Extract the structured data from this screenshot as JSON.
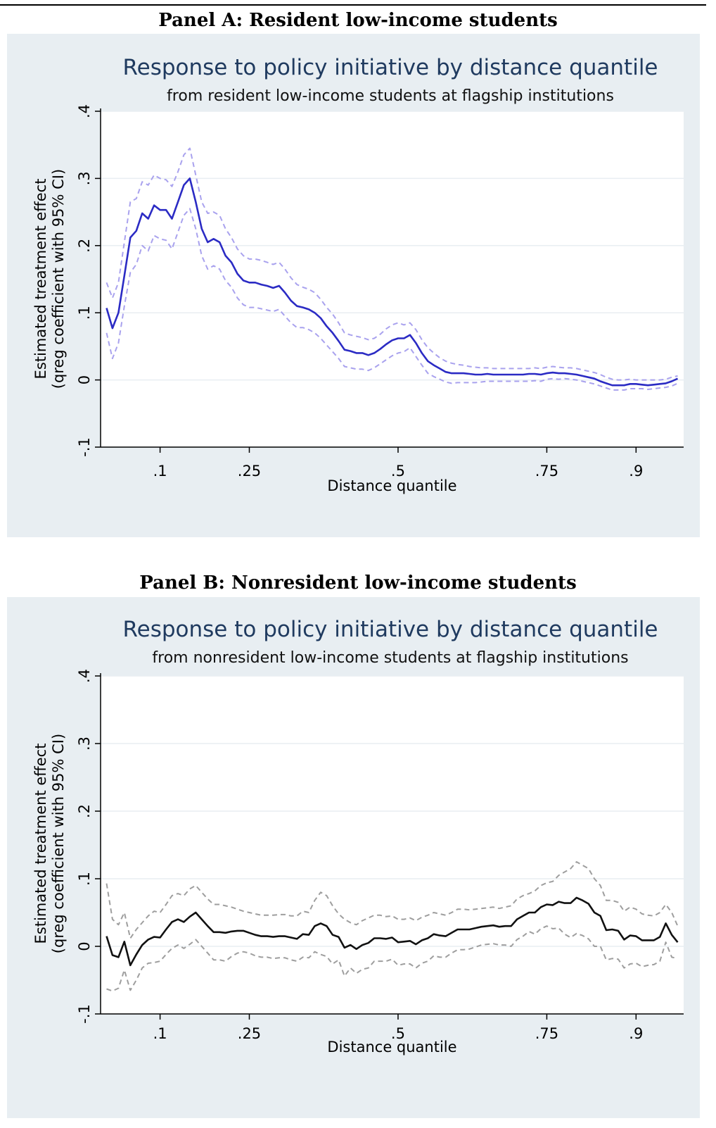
{
  "panels": [
    {
      "label": "Panel A: Resident low-income students"
    },
    {
      "label": "Panel B: Nonresident low-income students"
    }
  ],
  "chart_data": [
    {
      "type": "line",
      "title": "Response to policy initiative by distance quantile",
      "subtitle": "from resident low-income students at flagship institutions",
      "xlabel": "Distance quantile",
      "ylabel": "Estimated treatment effect",
      "ylabel2": "(qreg coefficient with 95% CI)",
      "xlim": [
        0.0,
        0.98
      ],
      "ylim": [
        -0.1,
        0.4
      ],
      "xticks": [
        0.1,
        0.25,
        0.5,
        0.75,
        0.9
      ],
      "xtick_labels": [
        ".1",
        ".25",
        ".5",
        ".75",
        ".9"
      ],
      "yticks": [
        -0.1,
        0,
        0.1,
        0.2,
        0.3,
        0.4
      ],
      "ytick_labels": [
        "-.1",
        "0",
        ".1",
        ".2",
        ".3",
        ".4"
      ],
      "grid": true,
      "colors": {
        "estimate": "#2b2bc4",
        "ci": "#a9a2ee",
        "background": "#e8eef2",
        "plot": "#ffffff",
        "grid": "#e8eef2"
      },
      "x": [
        0.01,
        0.02,
        0.03,
        0.04,
        0.05,
        0.06,
        0.07,
        0.08,
        0.09,
        0.1,
        0.11,
        0.12,
        0.13,
        0.14,
        0.15,
        0.16,
        0.17,
        0.18,
        0.19,
        0.2,
        0.21,
        0.22,
        0.23,
        0.24,
        0.25,
        0.26,
        0.27,
        0.28,
        0.29,
        0.3,
        0.31,
        0.32,
        0.33,
        0.34,
        0.35,
        0.36,
        0.37,
        0.38,
        0.39,
        0.4,
        0.41,
        0.42,
        0.43,
        0.44,
        0.45,
        0.46,
        0.47,
        0.48,
        0.49,
        0.5,
        0.51,
        0.52,
        0.53,
        0.54,
        0.55,
        0.56,
        0.57,
        0.58,
        0.59,
        0.6,
        0.61,
        0.62,
        0.63,
        0.64,
        0.65,
        0.66,
        0.67,
        0.68,
        0.69,
        0.7,
        0.71,
        0.72,
        0.73,
        0.74,
        0.75,
        0.76,
        0.77,
        0.78,
        0.79,
        0.8,
        0.81,
        0.82,
        0.83,
        0.84,
        0.85,
        0.86,
        0.87,
        0.88,
        0.89,
        0.9,
        0.91,
        0.92,
        0.93,
        0.94,
        0.95,
        0.96,
        0.97
      ],
      "series": [
        {
          "name": "",
          "role": "estimate",
          "values": [
            0.107,
            0.077,
            0.1,
            0.155,
            0.212,
            0.222,
            0.248,
            0.24,
            0.26,
            0.253,
            0.253,
            0.24,
            0.265,
            0.29,
            0.3,
            0.265,
            0.225,
            0.205,
            0.21,
            0.205,
            0.185,
            0.175,
            0.158,
            0.148,
            0.145,
            0.145,
            0.142,
            0.14,
            0.137,
            0.14,
            0.13,
            0.118,
            0.11,
            0.108,
            0.105,
            0.1,
            0.092,
            0.08,
            0.07,
            0.058,
            0.045,
            0.043,
            0.04,
            0.04,
            0.037,
            0.04,
            0.046,
            0.053,
            0.059,
            0.062,
            0.062,
            0.067,
            0.055,
            0.04,
            0.028,
            0.022,
            0.017,
            0.012,
            0.01,
            0.01,
            0.01,
            0.009,
            0.008,
            0.008,
            0.009,
            0.008,
            0.008,
            0.008,
            0.008,
            0.008,
            0.008,
            0.009,
            0.009,
            0.008,
            0.01,
            0.011,
            0.01,
            0.01,
            0.009,
            0.008,
            0.006,
            0.004,
            0.002,
            -0.002,
            -0.005,
            -0.008,
            -0.008,
            -0.008,
            -0.006,
            -0.006,
            -0.007,
            -0.008,
            -0.007,
            -0.006,
            -0.005,
            -0.002,
            0.002
          ]
        },
        {
          "name": "",
          "role": "upper",
          "values": [
            0.145,
            0.122,
            0.145,
            0.205,
            0.265,
            0.27,
            0.295,
            0.29,
            0.305,
            0.3,
            0.298,
            0.288,
            0.31,
            0.335,
            0.345,
            0.305,
            0.265,
            0.248,
            0.25,
            0.245,
            0.225,
            0.212,
            0.195,
            0.185,
            0.18,
            0.18,
            0.178,
            0.175,
            0.172,
            0.175,
            0.165,
            0.152,
            0.142,
            0.138,
            0.135,
            0.13,
            0.12,
            0.108,
            0.098,
            0.085,
            0.07,
            0.067,
            0.065,
            0.063,
            0.06,
            0.062,
            0.068,
            0.076,
            0.082,
            0.085,
            0.082,
            0.085,
            0.075,
            0.06,
            0.048,
            0.04,
            0.033,
            0.028,
            0.025,
            0.023,
            0.022,
            0.02,
            0.019,
            0.018,
            0.018,
            0.017,
            0.017,
            0.017,
            0.017,
            0.017,
            0.017,
            0.017,
            0.018,
            0.017,
            0.019,
            0.02,
            0.019,
            0.018,
            0.018,
            0.017,
            0.015,
            0.013,
            0.011,
            0.008,
            0.004,
            0.001,
            0.0,
            0.0,
            0.001,
            0.0,
            0.0,
            0.0,
            0.0,
            0.0,
            0.001,
            0.004,
            0.006
          ]
        },
        {
          "name": "",
          "role": "lower",
          "values": [
            0.07,
            0.032,
            0.055,
            0.11,
            0.16,
            0.172,
            0.2,
            0.192,
            0.215,
            0.21,
            0.208,
            0.195,
            0.22,
            0.245,
            0.255,
            0.225,
            0.185,
            0.165,
            0.17,
            0.165,
            0.148,
            0.138,
            0.122,
            0.112,
            0.108,
            0.108,
            0.106,
            0.104,
            0.102,
            0.105,
            0.095,
            0.085,
            0.078,
            0.078,
            0.075,
            0.07,
            0.062,
            0.052,
            0.042,
            0.032,
            0.02,
            0.018,
            0.016,
            0.016,
            0.014,
            0.018,
            0.024,
            0.03,
            0.036,
            0.04,
            0.042,
            0.048,
            0.035,
            0.022,
            0.01,
            0.005,
            0.001,
            -0.003,
            -0.005,
            -0.004,
            -0.004,
            -0.004,
            -0.004,
            -0.003,
            -0.002,
            -0.002,
            -0.002,
            -0.002,
            -0.002,
            -0.002,
            -0.002,
            -0.002,
            -0.001,
            -0.002,
            0.001,
            0.002,
            0.001,
            0.002,
            0.001,
            0.0,
            -0.002,
            -0.004,
            -0.006,
            -0.009,
            -0.012,
            -0.015,
            -0.015,
            -0.015,
            -0.013,
            -0.013,
            -0.013,
            -0.014,
            -0.013,
            -0.012,
            -0.011,
            -0.009,
            -0.005
          ]
        }
      ]
    },
    {
      "type": "line",
      "title": "Response to policy initiative by distance quantile",
      "subtitle": "from nonresident low-income students at flagship institutions",
      "xlabel": "Distance quantile",
      "ylabel": "Estimated treatment effect",
      "ylabel2": "(qreg coefficient with 95% CI)",
      "xlim": [
        0.0,
        0.98
      ],
      "ylim": [
        -0.1,
        0.4
      ],
      "xticks": [
        0.1,
        0.25,
        0.5,
        0.75,
        0.9
      ],
      "xtick_labels": [
        ".1",
        ".25",
        ".5",
        ".75",
        ".9"
      ],
      "yticks": [
        -0.1,
        0,
        0.1,
        0.2,
        0.3,
        0.4
      ],
      "ytick_labels": [
        "-.1",
        "0",
        ".1",
        ".2",
        ".3",
        ".4"
      ],
      "grid": true,
      "colors": {
        "estimate": "#111111",
        "ci": "#9e9e9e",
        "background": "#e8eef2",
        "plot": "#ffffff",
        "grid": "#e8eef2"
      },
      "x": [
        0.01,
        0.02,
        0.03,
        0.04,
        0.05,
        0.06,
        0.07,
        0.08,
        0.09,
        0.1,
        0.11,
        0.12,
        0.13,
        0.14,
        0.15,
        0.16,
        0.17,
        0.18,
        0.19,
        0.2,
        0.21,
        0.22,
        0.23,
        0.24,
        0.25,
        0.26,
        0.27,
        0.28,
        0.29,
        0.3,
        0.31,
        0.32,
        0.33,
        0.34,
        0.35,
        0.36,
        0.37,
        0.38,
        0.39,
        0.4,
        0.41,
        0.42,
        0.43,
        0.44,
        0.45,
        0.46,
        0.47,
        0.48,
        0.49,
        0.5,
        0.51,
        0.52,
        0.53,
        0.54,
        0.55,
        0.56,
        0.57,
        0.58,
        0.59,
        0.6,
        0.61,
        0.62,
        0.63,
        0.64,
        0.65,
        0.66,
        0.67,
        0.68,
        0.69,
        0.7,
        0.71,
        0.72,
        0.73,
        0.74,
        0.75,
        0.76,
        0.77,
        0.78,
        0.79,
        0.8,
        0.81,
        0.82,
        0.83,
        0.84,
        0.85,
        0.86,
        0.87,
        0.88,
        0.89,
        0.9,
        0.91,
        0.92,
        0.93,
        0.94,
        0.95,
        0.96,
        0.97
      ],
      "series": [
        {
          "name": "",
          "role": "estimate",
          "values": [
            0.015,
            -0.013,
            -0.016,
            0.007,
            -0.028,
            -0.012,
            0.002,
            0.01,
            0.014,
            0.013,
            0.025,
            0.036,
            0.04,
            0.036,
            0.044,
            0.05,
            0.04,
            0.03,
            0.021,
            0.021,
            0.02,
            0.022,
            0.023,
            0.023,
            0.02,
            0.017,
            0.015,
            0.015,
            0.014,
            0.015,
            0.015,
            0.013,
            0.011,
            0.018,
            0.017,
            0.03,
            0.034,
            0.03,
            0.017,
            0.014,
            -0.002,
            0.002,
            -0.004,
            0.002,
            0.005,
            0.012,
            0.012,
            0.011,
            0.013,
            0.006,
            0.007,
            0.008,
            0.003,
            0.009,
            0.012,
            0.018,
            0.016,
            0.015,
            0.02,
            0.025,
            0.025,
            0.025,
            0.027,
            0.029,
            0.03,
            0.031,
            0.029,
            0.03,
            0.03,
            0.04,
            0.045,
            0.05,
            0.05,
            0.058,
            0.062,
            0.061,
            0.066,
            0.064,
            0.064,
            0.072,
            0.068,
            0.063,
            0.05,
            0.045,
            0.024,
            0.025,
            0.023,
            0.01,
            0.016,
            0.015,
            0.009,
            0.009,
            0.009,
            0.014,
            0.034,
            0.017,
            0.006
          ]
        },
        {
          "name": "",
          "role": "upper",
          "values": [
            0.093,
            0.04,
            0.032,
            0.05,
            0.012,
            0.025,
            0.035,
            0.045,
            0.052,
            0.05,
            0.062,
            0.075,
            0.078,
            0.075,
            0.085,
            0.09,
            0.08,
            0.07,
            0.062,
            0.062,
            0.06,
            0.058,
            0.055,
            0.052,
            0.05,
            0.048,
            0.046,
            0.046,
            0.046,
            0.047,
            0.047,
            0.045,
            0.045,
            0.052,
            0.05,
            0.068,
            0.08,
            0.075,
            0.06,
            0.048,
            0.04,
            0.035,
            0.032,
            0.038,
            0.042,
            0.046,
            0.046,
            0.044,
            0.045,
            0.04,
            0.04,
            0.042,
            0.038,
            0.043,
            0.046,
            0.05,
            0.048,
            0.046,
            0.05,
            0.055,
            0.055,
            0.054,
            0.055,
            0.056,
            0.057,
            0.058,
            0.056,
            0.058,
            0.06,
            0.07,
            0.075,
            0.078,
            0.082,
            0.09,
            0.094,
            0.096,
            0.105,
            0.11,
            0.115,
            0.125,
            0.12,
            0.115,
            0.1,
            0.09,
            0.068,
            0.068,
            0.065,
            0.052,
            0.058,
            0.055,
            0.048,
            0.046,
            0.045,
            0.05,
            0.062,
            0.05,
            0.03
          ]
        },
        {
          "name": "",
          "role": "lower",
          "values": [
            -0.063,
            -0.066,
            -0.062,
            -0.035,
            -0.065,
            -0.05,
            -0.032,
            -0.025,
            -0.024,
            -0.022,
            -0.012,
            -0.003,
            0.002,
            -0.003,
            0.003,
            0.01,
            0.0,
            -0.01,
            -0.02,
            -0.02,
            -0.022,
            -0.015,
            -0.01,
            -0.008,
            -0.01,
            -0.014,
            -0.016,
            -0.016,
            -0.018,
            -0.017,
            -0.017,
            -0.02,
            -0.022,
            -0.016,
            -0.017,
            -0.008,
            -0.012,
            -0.015,
            -0.026,
            -0.02,
            -0.044,
            -0.032,
            -0.04,
            -0.034,
            -0.032,
            -0.022,
            -0.022,
            -0.022,
            -0.019,
            -0.028,
            -0.026,
            -0.026,
            -0.032,
            -0.025,
            -0.022,
            -0.014,
            -0.016,
            -0.016,
            -0.01,
            -0.005,
            -0.005,
            -0.004,
            -0.001,
            0.002,
            0.003,
            0.004,
            0.002,
            0.002,
            0.0,
            0.01,
            0.015,
            0.022,
            0.018,
            0.026,
            0.03,
            0.026,
            0.027,
            0.018,
            0.013,
            0.019,
            0.016,
            0.011,
            0.0,
            0.0,
            -0.02,
            -0.018,
            -0.019,
            -0.032,
            -0.026,
            -0.025,
            -0.03,
            -0.028,
            -0.027,
            -0.022,
            0.006,
            -0.016,
            -0.018
          ]
        }
      ]
    }
  ]
}
